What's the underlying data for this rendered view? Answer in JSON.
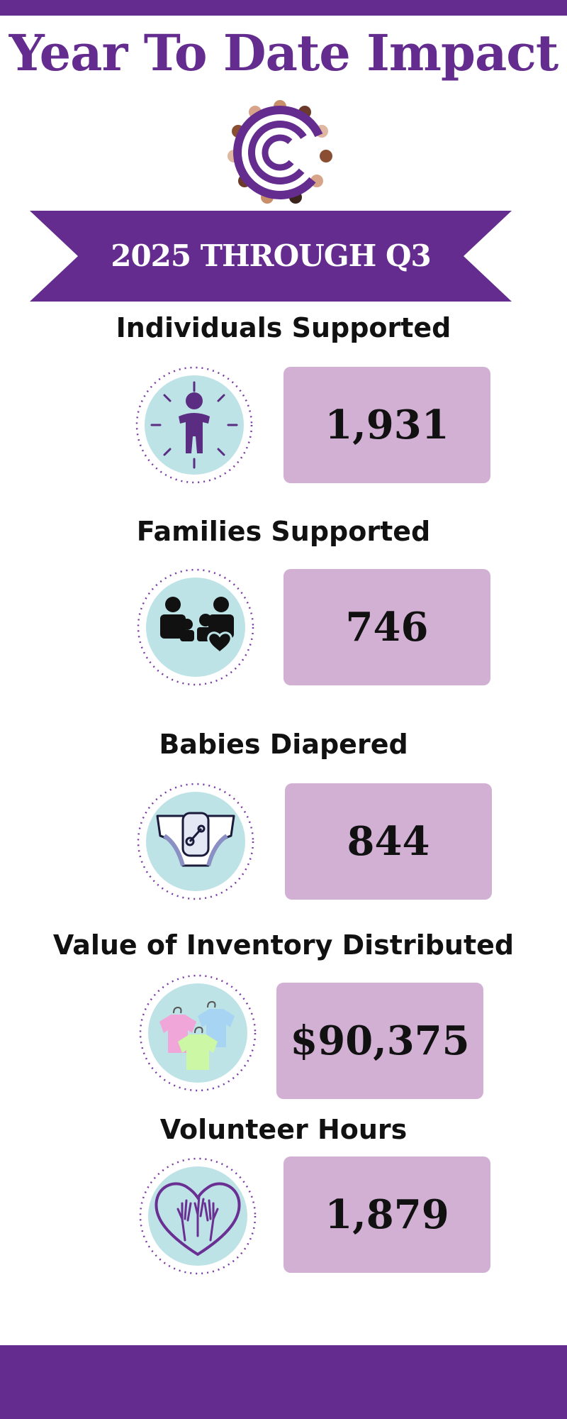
{
  "header": {
    "title": "Year To Date Impact"
  },
  "banner": {
    "text": "2025 THROUGH Q3"
  },
  "colors": {
    "brand_purple": "#642c8f",
    "value_box": "#d2b0d4",
    "icon_bg": "#bde3e6"
  },
  "stats": [
    {
      "label": "Individuals Supported",
      "value": "1,931",
      "icon": "person-icon"
    },
    {
      "label": "Families Supported",
      "value": "746",
      "icon": "family-icon"
    },
    {
      "label": "Babies Diapered",
      "value": "844",
      "icon": "diaper-icon"
    },
    {
      "label": "Value of Inventory Distributed",
      "value": "$90,375",
      "icon": "clothing-icon"
    },
    {
      "label": "Volunteer Hours",
      "value": "1,879",
      "icon": "volunteer-hands-icon"
    }
  ]
}
